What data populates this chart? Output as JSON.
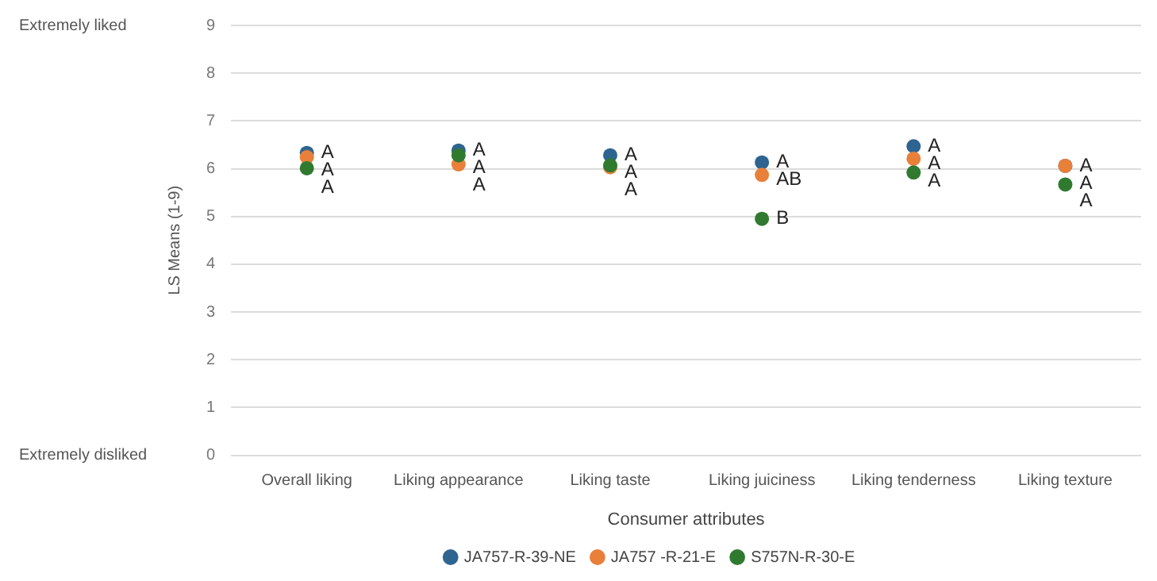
{
  "chart_data": {
    "type": "scatter",
    "xlabel": "Consumer attributes",
    "ylabel": "LS Means (1-9)",
    "categories": [
      "Overall liking",
      "Liking appearance",
      "Liking taste",
      "Liking juiciness",
      "Liking tenderness",
      "Liking texture"
    ],
    "series": [
      {
        "name": "JA757-R-39-NE",
        "color": "#2e6490",
        "values": [
          6.33,
          6.38,
          6.28,
          6.13,
          6.47,
          6.06
        ],
        "value_labels": [
          "A",
          "A",
          "A",
          "A",
          "A",
          "A"
        ]
      },
      {
        "name": "JA757 -R-21-E",
        "color": "#e8803a",
        "values": [
          6.24,
          6.09,
          6.03,
          5.87,
          6.21,
          6.06
        ],
        "value_labels": [
          "A",
          "A",
          "A",
          "AB",
          "A",
          "A"
        ]
      },
      {
        "name": "S757N-R-30-E",
        "color": "#2f7a2f",
        "values": [
          6.01,
          6.28,
          6.07,
          4.95,
          5.92,
          5.67
        ],
        "value_labels": [
          "A",
          "A",
          "A",
          "B",
          "A",
          "A"
        ]
      }
    ],
    "ylim": [
      0,
      9
    ],
    "yticks": [
      0,
      1,
      2,
      3,
      4,
      5,
      6,
      7,
      8,
      9
    ],
    "annotations": [
      "Extremely liked",
      "Extremely disliked"
    ],
    "grid": "y",
    "legend": "bottom",
    "marker": "circle"
  }
}
